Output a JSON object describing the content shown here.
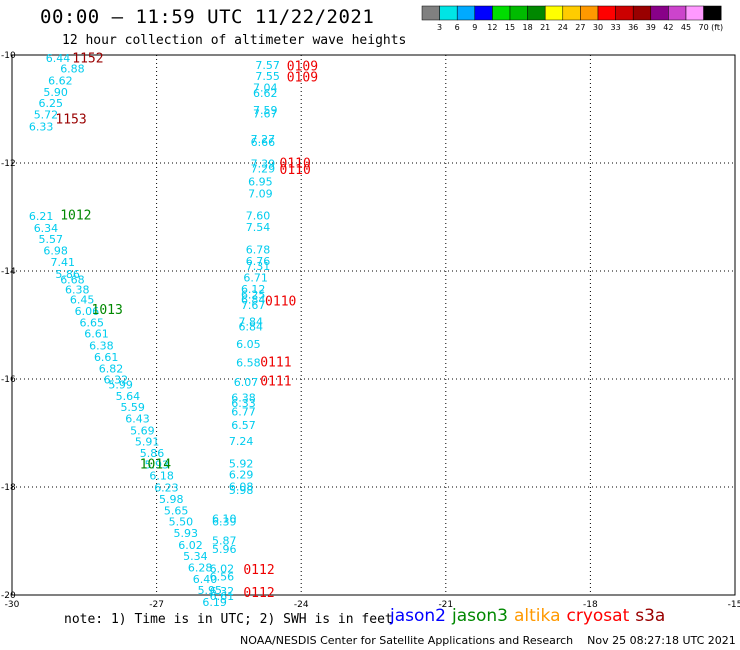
{
  "header": {
    "title": "00:00 – 11:59 UTC 11/22/2021",
    "subtitle": "12 hour collection of altimeter wave heights"
  },
  "color_scale": {
    "unit_label": "(ft)",
    "ticks": [
      "3",
      "6",
      "9",
      "12",
      "15",
      "18",
      "21",
      "24",
      "27",
      "30",
      "33",
      "36",
      "39",
      "42",
      "45",
      "70"
    ],
    "colors": [
      "#808080",
      "#00e5e5",
      "#00aaff",
      "#0000ff",
      "#00dd00",
      "#00bb00",
      "#008800",
      "#ffff00",
      "#ffcc00",
      "#ff9900",
      "#ff0000",
      "#cc0000",
      "#990000",
      "#880088",
      "#cc44cc",
      "#ff99ff",
      "#000000"
    ]
  },
  "footer": {
    "note": "note: 1) Time is in UTC; 2) SWH is in feet",
    "credit": "NOAA/NESDIS Center for Satellite Applications and Research    Nov 25 08:27:18 UTC 2021"
  },
  "legend": [
    {
      "name": "jason2",
      "color": "#0000ff"
    },
    {
      "name": "jason3",
      "color": "#008800"
    },
    {
      "name": "altika",
      "color": "#ff9900"
    },
    {
      "name": "cryosat",
      "color": "#ff0000"
    },
    {
      "name": "s3a",
      "color": "#990000"
    }
  ],
  "chart_data": {
    "type": "scatter",
    "title": "",
    "xlabel": "",
    "ylabel": "",
    "xlim": [
      -30,
      -15
    ],
    "ylim": [
      -20,
      -10
    ],
    "x_ticks": [
      -30,
      -27,
      -24,
      -21,
      -18,
      -15
    ],
    "y_ticks": [
      -10,
      -12,
      -14,
      -16,
      -18,
      -20
    ],
    "grid": true,
    "value_color": "#00ccee",
    "labels": [
      {
        "x": -29.3,
        "y": -10.07,
        "text": "6.44"
      },
      {
        "x": -29.0,
        "y": -10.27,
        "text": "6.88"
      },
      {
        "x": -29.25,
        "y": -10.49,
        "text": "6.62"
      },
      {
        "x": -29.35,
        "y": -10.7,
        "text": "5.90"
      },
      {
        "x": -29.45,
        "y": -10.91,
        "text": "6.25"
      },
      {
        "x": -29.55,
        "y": -11.12,
        "text": "5.72"
      },
      {
        "x": -29.65,
        "y": -11.34,
        "text": "6.33"
      },
      {
        "x": -29.65,
        "y": -13.0,
        "text": "6.21"
      },
      {
        "x": -29.55,
        "y": -13.22,
        "text": "6.34"
      },
      {
        "x": -29.45,
        "y": -13.43,
        "text": "5.57"
      },
      {
        "x": -29.35,
        "y": -13.64,
        "text": "6.98"
      },
      {
        "x": -29.2,
        "y": -13.85,
        "text": "7.41"
      },
      {
        "x": -29.1,
        "y": -14.07,
        "text": "5.86"
      },
      {
        "x": -29.0,
        "y": -14.18,
        "text": "6.68"
      },
      {
        "x": -28.9,
        "y": -14.36,
        "text": "6.38"
      },
      {
        "x": -28.8,
        "y": -14.55,
        "text": "6.45"
      },
      {
        "x": -28.7,
        "y": -14.76,
        "text": "6.06"
      },
      {
        "x": -28.6,
        "y": -14.97,
        "text": "6.65"
      },
      {
        "x": -28.5,
        "y": -15.18,
        "text": "6.61"
      },
      {
        "x": -28.4,
        "y": -15.4,
        "text": "6.38"
      },
      {
        "x": -28.3,
        "y": -15.61,
        "text": "6.61"
      },
      {
        "x": -28.2,
        "y": -15.82,
        "text": "6.82"
      },
      {
        "x": -28.1,
        "y": -16.03,
        "text": "6.32"
      },
      {
        "x": -28.0,
        "y": -16.12,
        "text": "5.99"
      },
      {
        "x": -27.85,
        "y": -16.33,
        "text": "5.64"
      },
      {
        "x": -27.75,
        "y": -16.54,
        "text": "5.59"
      },
      {
        "x": -27.65,
        "y": -16.75,
        "text": "6.43"
      },
      {
        "x": -27.55,
        "y": -16.97,
        "text": "5.69"
      },
      {
        "x": -27.45,
        "y": -17.18,
        "text": "5.91"
      },
      {
        "x": -27.35,
        "y": -17.39,
        "text": "5.86"
      },
      {
        "x": -27.25,
        "y": -17.6,
        "text": "5.93"
      },
      {
        "x": -27.15,
        "y": -17.81,
        "text": "6.18"
      },
      {
        "x": -27.05,
        "y": -18.03,
        "text": "6.23"
      },
      {
        "x": -26.95,
        "y": -18.24,
        "text": "5.98"
      },
      {
        "x": -26.85,
        "y": -18.45,
        "text": "5.65"
      },
      {
        "x": -26.75,
        "y": -18.66,
        "text": "5.50"
      },
      {
        "x": -26.65,
        "y": -18.87,
        "text": "5.93"
      },
      {
        "x": -26.55,
        "y": -19.09,
        "text": "6.02"
      },
      {
        "x": -26.45,
        "y": -19.3,
        "text": "5.34"
      },
      {
        "x": -26.35,
        "y": -19.51,
        "text": "6.28"
      },
      {
        "x": -26.25,
        "y": -19.72,
        "text": "6.40"
      },
      {
        "x": -26.15,
        "y": -19.93,
        "text": "5.95"
      },
      {
        "x": -26.05,
        "y": -20.15,
        "text": "6.19"
      },
      {
        "x": -24.95,
        "y": -10.2,
        "text": "7.57"
      },
      {
        "x": -24.95,
        "y": -10.41,
        "text": "7.55"
      },
      {
        "x": -25.0,
        "y": -10.62,
        "text": "7.04"
      },
      {
        "x": -25.0,
        "y": -10.72,
        "text": "6.62"
      },
      {
        "x": -25.0,
        "y": -11.04,
        "text": "7.59"
      },
      {
        "x": -25.0,
        "y": -11.1,
        "text": "7.67"
      },
      {
        "x": -25.05,
        "y": -11.57,
        "text": "7.27"
      },
      {
        "x": -25.05,
        "y": -11.63,
        "text": "6.66"
      },
      {
        "x": -25.05,
        "y": -12.03,
        "text": "7.39"
      },
      {
        "x": -25.05,
        "y": -12.12,
        "text": "7.29"
      },
      {
        "x": -25.1,
        "y": -12.36,
        "text": "6.95"
      },
      {
        "x": -25.1,
        "y": -12.58,
        "text": "7.09"
      },
      {
        "x": -25.15,
        "y": -12.99,
        "text": "7.60"
      },
      {
        "x": -25.15,
        "y": -13.2,
        "text": "7.54"
      },
      {
        "x": -25.15,
        "y": -13.62,
        "text": "6.78"
      },
      {
        "x": -25.15,
        "y": -13.83,
        "text": "6.76"
      },
      {
        "x": -25.15,
        "y": -13.93,
        "text": "7.31"
      },
      {
        "x": -25.2,
        "y": -14.14,
        "text": "6.71"
      },
      {
        "x": -25.25,
        "y": -14.35,
        "text": "6.12"
      },
      {
        "x": -25.25,
        "y": -14.45,
        "text": "6.25"
      },
      {
        "x": -25.25,
        "y": -14.55,
        "text": "6.84"
      },
      {
        "x": -25.25,
        "y": -14.65,
        "text": "7.67"
      },
      {
        "x": -25.3,
        "y": -14.95,
        "text": "7.84"
      },
      {
        "x": -25.3,
        "y": -15.05,
        "text": "6.84"
      },
      {
        "x": -25.35,
        "y": -15.37,
        "text": "6.05"
      },
      {
        "x": -25.35,
        "y": -15.71,
        "text": "6.58"
      },
      {
        "x": -25.4,
        "y": -16.07,
        "text": "6.07"
      },
      {
        "x": -25.45,
        "y": -16.36,
        "text": "6.38"
      },
      {
        "x": -25.45,
        "y": -16.46,
        "text": "6.33"
      },
      {
        "x": -25.45,
        "y": -16.62,
        "text": "6.77"
      },
      {
        "x": -25.45,
        "y": -16.87,
        "text": "6.57"
      },
      {
        "x": -25.5,
        "y": -17.17,
        "text": "7.24"
      },
      {
        "x": -25.5,
        "y": -17.58,
        "text": "5.92"
      },
      {
        "x": -25.5,
        "y": -17.79,
        "text": "6.29"
      },
      {
        "x": -25.5,
        "y": -18.01,
        "text": "6.08"
      },
      {
        "x": -25.5,
        "y": -18.07,
        "text": "5.98"
      },
      {
        "x": -25.85,
        "y": -18.6,
        "text": "6.10"
      },
      {
        "x": -25.85,
        "y": -18.66,
        "text": "6.39"
      },
      {
        "x": -25.85,
        "y": -19.01,
        "text": "5.87"
      },
      {
        "x": -25.85,
        "y": -19.17,
        "text": "5.96"
      },
      {
        "x": -25.9,
        "y": -19.53,
        "text": "6.02"
      },
      {
        "x": -25.9,
        "y": -19.68,
        "text": "6.56"
      },
      {
        "x": -25.9,
        "y": -19.94,
        "text": "6.32"
      },
      {
        "x": -25.9,
        "y": -20.04,
        "text": "6.61"
      }
    ],
    "orbit_labels": [
      {
        "x": -28.75,
        "y": -10.07,
        "text": "1152",
        "color": "#990000"
      },
      {
        "x": -29.1,
        "y": -11.2,
        "text": "1153",
        "color": "#990000"
      },
      {
        "x": -29.0,
        "y": -12.98,
        "text": "1012",
        "color": "#008800"
      },
      {
        "x": -28.35,
        "y": -14.73,
        "text": "1013",
        "color": "#008800"
      },
      {
        "x": -27.35,
        "y": -17.59,
        "text": "1014",
        "color": "#008800"
      },
      {
        "x": -24.3,
        "y": -10.22,
        "text": "0109",
        "color": "#ee0000"
      },
      {
        "x": -24.3,
        "y": -10.43,
        "text": "0109",
        "color": "#ee0000"
      },
      {
        "x": -24.45,
        "y": -12.02,
        "text": "0110",
        "color": "#ee0000"
      },
      {
        "x": -24.45,
        "y": -12.14,
        "text": "0110",
        "color": "#ee0000"
      },
      {
        "x": -24.75,
        "y": -14.57,
        "text": "0110",
        "color": "#ee0000"
      },
      {
        "x": -24.85,
        "y": -15.7,
        "text": "0111",
        "color": "#ee0000"
      },
      {
        "x": -24.85,
        "y": -16.06,
        "text": "0111",
        "color": "#ee0000"
      },
      {
        "x": -25.2,
        "y": -19.55,
        "text": "0112",
        "color": "#ee0000"
      },
      {
        "x": -25.2,
        "y": -19.97,
        "text": "0112",
        "color": "#ee0000"
      }
    ]
  }
}
